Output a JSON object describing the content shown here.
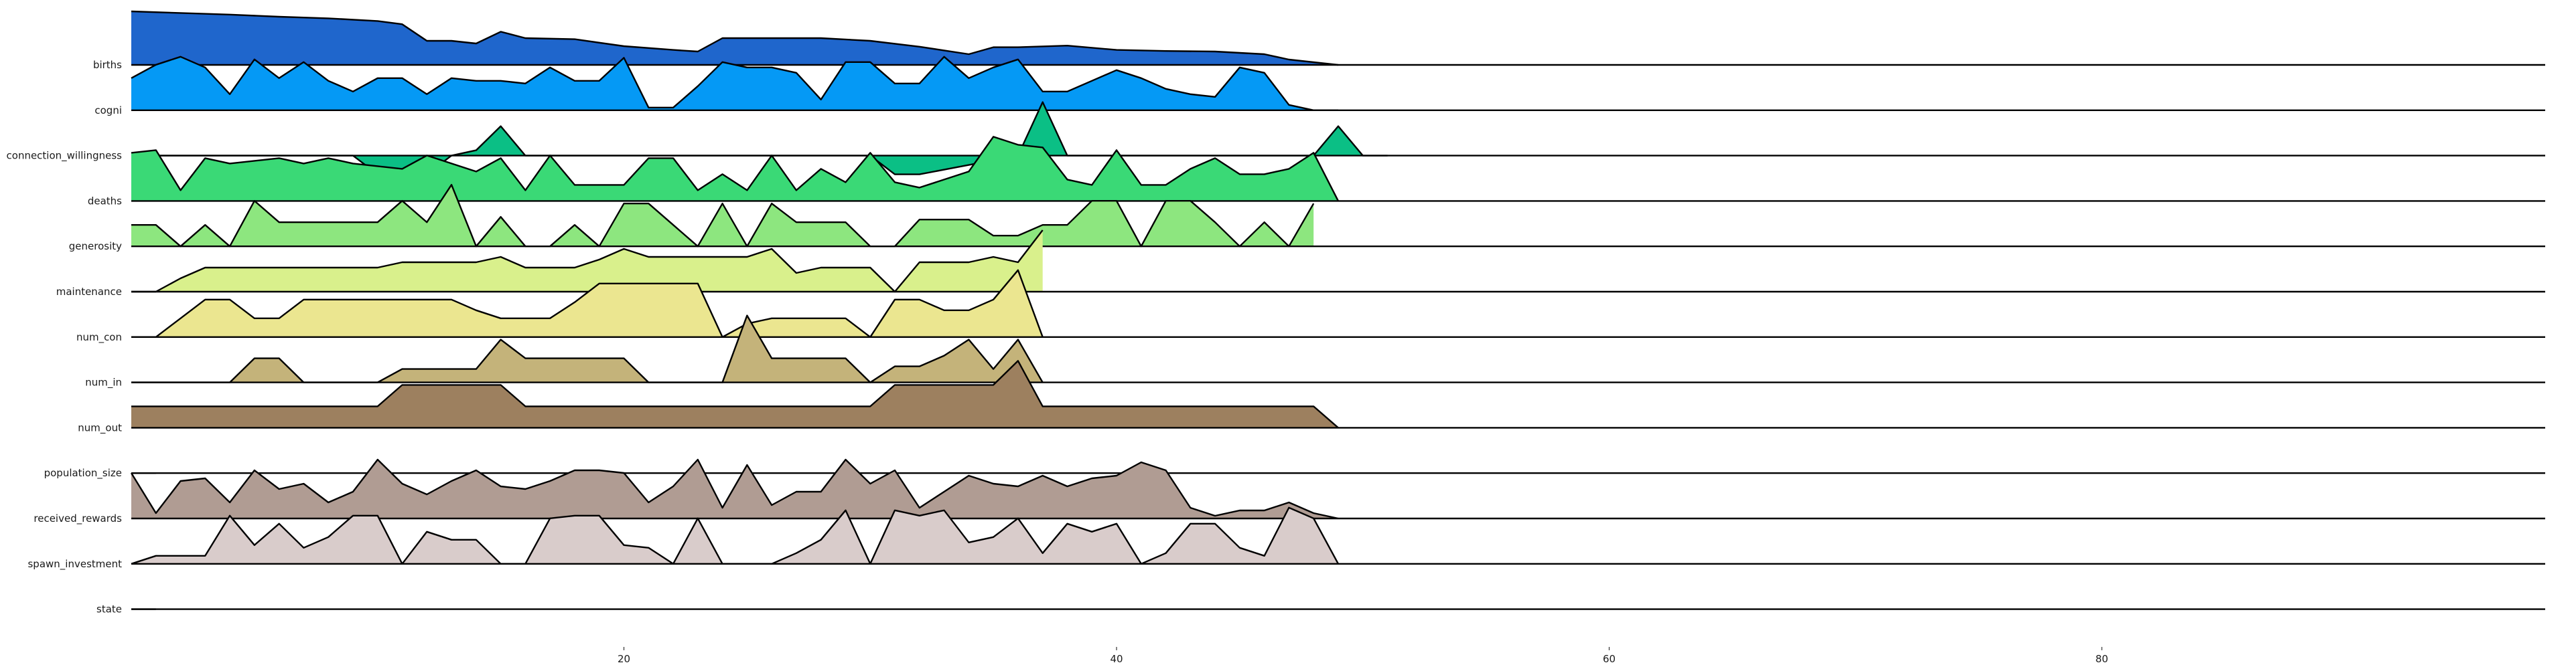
{
  "chart_data": {
    "type": "area",
    "title": "",
    "xlabel": "",
    "ylabel": "",
    "xlim": [
      0,
      98
    ],
    "xticks": [
      20,
      40,
      60,
      80
    ],
    "grid": false,
    "legend": "none",
    "series": [
      {
        "name": "births",
        "color": "#1f66cc",
        "x": [
          0,
          2,
          4,
          6,
          8,
          10,
          11,
          12,
          13,
          14,
          15,
          16,
          18,
          20,
          22,
          23,
          24,
          26,
          28,
          30,
          32,
          34,
          35,
          36,
          38,
          40,
          42,
          44,
          46,
          47,
          48,
          49
        ],
        "y": [
          1.0,
          0.97,
          0.94,
          0.9,
          0.87,
          0.82,
          0.76,
          0.45,
          0.45,
          0.4,
          0.62,
          0.5,
          0.48,
          0.35,
          0.28,
          0.25,
          0.5,
          0.5,
          0.5,
          0.45,
          0.34,
          0.2,
          0.33,
          0.33,
          0.36,
          0.28,
          0.26,
          0.25,
          0.2,
          0.1,
          0.05,
          0.0
        ]
      },
      {
        "name": "cogni",
        "color": "#0599f5",
        "x": [
          0,
          1,
          2,
          3,
          4,
          5,
          6,
          7,
          8,
          9,
          10,
          11,
          12,
          13,
          14,
          15,
          16,
          17,
          18,
          19,
          20,
          21,
          22,
          23,
          24,
          25,
          26,
          27,
          28,
          29,
          30,
          31,
          32,
          33,
          34,
          35,
          36,
          37,
          38,
          39,
          40,
          41,
          42,
          43,
          44,
          45,
          46,
          47,
          48,
          49
        ],
        "y": [
          0.6,
          0.85,
          1.0,
          0.8,
          0.3,
          0.95,
          0.6,
          0.9,
          0.55,
          0.35,
          0.6,
          0.6,
          0.3,
          0.6,
          0.55,
          0.55,
          0.5,
          0.8,
          0.55,
          0.55,
          0.98,
          0.05,
          0.05,
          0.45,
          0.9,
          0.8,
          0.8,
          0.7,
          0.2,
          0.9,
          0.9,
          0.5,
          0.5,
          1.0,
          0.6,
          0.8,
          0.95,
          0.35,
          0.35,
          0.55,
          0.75,
          0.6,
          0.4,
          0.3,
          0.25,
          0.8,
          0.7,
          0.1,
          0.0,
          0.0
        ]
      },
      {
        "name": "connection_willingness",
        "color": "#0bbf85",
        "x": [
          0,
          9,
          10,
          11,
          12,
          13,
          14,
          15,
          16,
          17,
          30,
          31,
          32,
          36,
          37,
          38,
          39,
          40,
          48,
          49,
          50,
          51
        ],
        "y": [
          0,
          0,
          -0.35,
          -0.35,
          -0.35,
          0,
          0.1,
          0.55,
          0.0,
          0,
          0,
          -0.35,
          -0.35,
          0,
          1.0,
          0,
          0,
          0,
          0,
          0.55,
          0.0,
          0
        ]
      },
      {
        "name": "deaths",
        "color": "#3ad976",
        "x": [
          0,
          1,
          2,
          3,
          4,
          5,
          6,
          7,
          8,
          9,
          10,
          11,
          12,
          13,
          14,
          15,
          16,
          17,
          18,
          19,
          20,
          21,
          22,
          23,
          24,
          25,
          26,
          27,
          28,
          29,
          30,
          31,
          32,
          33,
          34,
          35,
          36,
          37,
          38,
          39,
          40,
          41,
          42,
          43,
          44,
          45,
          46,
          47,
          48,
          49
        ],
        "y": [
          0.9,
          0.95,
          0.2,
          0.8,
          0.7,
          0.75,
          0.8,
          0.7,
          0.8,
          0.7,
          0.65,
          0.6,
          0.85,
          0.7,
          0.55,
          0.8,
          0.2,
          0.85,
          0.3,
          0.3,
          0.3,
          0.8,
          0.8,
          0.2,
          0.5,
          0.2,
          0.85,
          0.2,
          0.6,
          0.35,
          0.9,
          0.35,
          0.25,
          0.4,
          0.55,
          1.2,
          1.05,
          1.0,
          0.4,
          0.3,
          0.95,
          0.3,
          0.3,
          0.6,
          0.8,
          0.5,
          0.5,
          0.6,
          0.9,
          0.0
        ]
      },
      {
        "name": "generosity",
        "color": "#8de67f",
        "x": [
          0,
          1,
          2,
          3,
          4,
          5,
          6,
          7,
          8,
          9,
          10,
          11,
          12,
          13,
          14,
          15,
          16,
          17,
          18,
          19,
          20,
          21,
          22,
          23,
          24,
          25,
          26,
          27,
          28,
          29,
          30,
          31,
          32,
          33,
          34,
          35,
          36,
          37,
          38,
          39,
          40,
          41,
          42,
          43,
          44,
          45,
          46,
          47,
          48
        ],
        "y": [
          0.4,
          0.4,
          0.0,
          0.4,
          0.0,
          0.85,
          0.45,
          0.45,
          0.45,
          0.45,
          0.45,
          0.85,
          0.45,
          1.15,
          0.0,
          0.55,
          0.0,
          0.0,
          0.4,
          0.0,
          0.8,
          0.8,
          0.4,
          0.0,
          0.8,
          0.0,
          0.8,
          0.45,
          0.45,
          0.45,
          0.0,
          0.0,
          0.5,
          0.5,
          0.5,
          0.2,
          0.2,
          0.4,
          0.4,
          0.85,
          0.85,
          0.0,
          0.85,
          0.85,
          0.45,
          0.0,
          0.45,
          0.0,
          0.8
        ]
      },
      {
        "name": "maintenance",
        "color": "#d9f08c",
        "x": [
          0,
          1,
          2,
          3,
          4,
          5,
          6,
          7,
          8,
          9,
          10,
          11,
          12,
          13,
          14,
          15,
          16,
          17,
          18,
          19,
          20,
          21,
          22,
          23,
          24,
          25,
          26,
          27,
          28,
          29,
          30,
          31,
          32,
          33,
          34,
          35,
          36,
          37
        ],
        "y": [
          0.0,
          0.0,
          0.25,
          0.45,
          0.45,
          0.45,
          0.45,
          0.45,
          0.45,
          0.45,
          0.45,
          0.55,
          0.55,
          0.55,
          0.55,
          0.65,
          0.45,
          0.45,
          0.45,
          0.6,
          0.8,
          0.65,
          0.65,
          0.65,
          0.65,
          0.65,
          0.8,
          0.35,
          0.45,
          0.45,
          0.45,
          0.0,
          0.55,
          0.55,
          0.55,
          0.65,
          0.55,
          1.15
        ]
      },
      {
        "name": "num_con",
        "color": "#ebe690",
        "x": [
          0,
          1,
          2,
          3,
          4,
          5,
          6,
          7,
          8,
          9,
          10,
          11,
          12,
          13,
          14,
          15,
          16,
          17,
          18,
          19,
          20,
          21,
          22,
          23,
          24,
          25,
          26,
          27,
          28,
          29,
          30,
          31,
          32,
          33,
          34,
          35,
          36,
          37
        ],
        "y": [
          0.0,
          0.0,
          0.35,
          0.7,
          0.7,
          0.35,
          0.35,
          0.7,
          0.7,
          0.7,
          0.7,
          0.7,
          0.7,
          0.7,
          0.5,
          0.35,
          0.35,
          0.35,
          0.65,
          1.0,
          1.0,
          1.0,
          1.0,
          1.0,
          0.0,
          0.25,
          0.35,
          0.35,
          0.35,
          0.35,
          0.0,
          0.7,
          0.7,
          0.5,
          0.5,
          0.7,
          1.25,
          0.0
        ]
      },
      {
        "name": "num_in",
        "color": "#c4b37a",
        "x": [
          0,
          1,
          2,
          3,
          4,
          5,
          6,
          7,
          8,
          9,
          10,
          11,
          12,
          13,
          14,
          15,
          16,
          17,
          18,
          19,
          20,
          21,
          22,
          23,
          24,
          25,
          26,
          27,
          28,
          29,
          30,
          31,
          32,
          33,
          34,
          35,
          36,
          37
        ],
        "y": [
          0.0,
          0.0,
          0.0,
          0.0,
          0.0,
          0.45,
          0.45,
          0.0,
          0.0,
          0.0,
          0.0,
          0.25,
          0.25,
          0.25,
          0.25,
          0.8,
          0.45,
          0.45,
          0.45,
          0.45,
          0.45,
          0.0,
          0.0,
          0.0,
          0.0,
          1.25,
          0.45,
          0.45,
          0.45,
          0.45,
          0.0,
          0.3,
          0.3,
          0.5,
          0.8,
          0.25,
          0.8,
          0.0
        ]
      },
      {
        "name": "num_out",
        "color": "#9d805f",
        "x": [
          0,
          10,
          11,
          12,
          13,
          14,
          15,
          16,
          17,
          30,
          31,
          32,
          33,
          34,
          35,
          36,
          37,
          38,
          48,
          49
        ],
        "y": [
          0.4,
          0.4,
          0.8,
          0.8,
          0.8,
          0.8,
          0.8,
          0.4,
          0.4,
          0.4,
          0.8,
          0.8,
          0.8,
          0.8,
          0.8,
          1.25,
          0.4,
          0.4,
          0.4,
          0.0
        ]
      },
      {
        "name": "population_size",
        "color": "#9d805f",
        "x": [
          0,
          1
        ],
        "y": [
          0,
          0
        ]
      },
      {
        "name": "received_rewards",
        "color": "#b09c93",
        "x": [
          0,
          1,
          2,
          3,
          4,
          5,
          6,
          7,
          8,
          9,
          10,
          11,
          12,
          13,
          14,
          15,
          16,
          17,
          18,
          19,
          20,
          21,
          22,
          23,
          24,
          25,
          26,
          27,
          28,
          29,
          30,
          31,
          32,
          33,
          34,
          35,
          36,
          37,
          38,
          39,
          40,
          41,
          42,
          43,
          44,
          45,
          46,
          47,
          48,
          49
        ],
        "y": [
          0.85,
          0.1,
          0.7,
          0.75,
          0.3,
          0.9,
          0.55,
          0.65,
          0.3,
          0.5,
          1.1,
          0.65,
          0.45,
          0.7,
          0.9,
          0.6,
          0.55,
          0.7,
          0.9,
          0.9,
          0.85,
          0.3,
          0.6,
          1.1,
          0.2,
          1.0,
          0.25,
          0.5,
          0.5,
          1.1,
          0.65,
          0.9,
          0.2,
          0.5,
          0.8,
          0.65,
          0.6,
          0.8,
          0.6,
          0.75,
          0.8,
          1.05,
          0.9,
          0.2,
          0.05,
          0.15,
          0.15,
          0.3,
          0.1,
          0.0
        ]
      },
      {
        "name": "spawn_investment",
        "color": "#d9cccb",
        "x": [
          0,
          1,
          2,
          3,
          4,
          5,
          6,
          7,
          8,
          9,
          10,
          11,
          12,
          13,
          14,
          15,
          16,
          17,
          18,
          19,
          20,
          21,
          22,
          23,
          24,
          25,
          26,
          27,
          28,
          29,
          30,
          31,
          32,
          33,
          34,
          35,
          36,
          37,
          38,
          39,
          40,
          41,
          42,
          43,
          44,
          45,
          46,
          47,
          48,
          49
        ],
        "y": [
          0.0,
          0.15,
          0.15,
          0.15,
          0.9,
          0.35,
          0.75,
          0.3,
          0.5,
          0.9,
          0.9,
          0.0,
          0.6,
          0.45,
          0.45,
          0.0,
          0.0,
          0.85,
          0.9,
          0.9,
          0.35,
          0.3,
          0.0,
          0.85,
          0.0,
          0.0,
          0.0,
          0.2,
          0.45,
          1.0,
          0.0,
          1.0,
          0.9,
          1.0,
          0.4,
          0.5,
          0.85,
          0.2,
          0.75,
          0.6,
          0.75,
          0.0,
          0.2,
          0.75,
          0.75,
          0.3,
          0.15,
          1.05,
          0.85,
          0.0
        ]
      },
      {
        "name": "state",
        "color": "#e3dcdb",
        "x": [
          0,
          1
        ],
        "y": [
          0,
          0
        ]
      }
    ]
  }
}
